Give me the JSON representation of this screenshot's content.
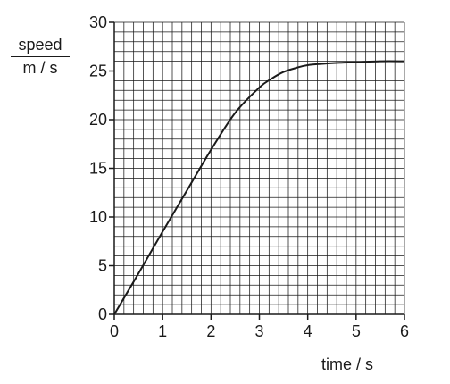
{
  "chart_data": {
    "type": "line",
    "title": "",
    "ylabel": {
      "numerator": "speed",
      "denominator": "m / s"
    },
    "xlabel": "time / s",
    "xlim": [
      0,
      6
    ],
    "ylim": [
      0,
      30
    ],
    "xticks": [
      "0",
      "1",
      "2",
      "3",
      "4",
      "5",
      "6"
    ],
    "yticks": [
      "0",
      "5",
      "10",
      "15",
      "20",
      "25",
      "30"
    ],
    "grid": true,
    "series": [
      {
        "x": [
          0,
          0.5,
          1.0,
          1.5,
          2.0,
          2.5,
          3.0,
          3.25,
          3.5,
          3.75,
          4.0,
          4.5,
          5.0,
          5.5,
          6.0
        ],
        "y": [
          0,
          4.2,
          8.5,
          12.7,
          16.9,
          20.7,
          23.3,
          24.2,
          24.9,
          25.3,
          25.6,
          25.8,
          25.9,
          26.0,
          26.0
        ]
      }
    ]
  },
  "colors": {
    "ink": "#1a1a1a",
    "grid": "#1a1a1a"
  }
}
